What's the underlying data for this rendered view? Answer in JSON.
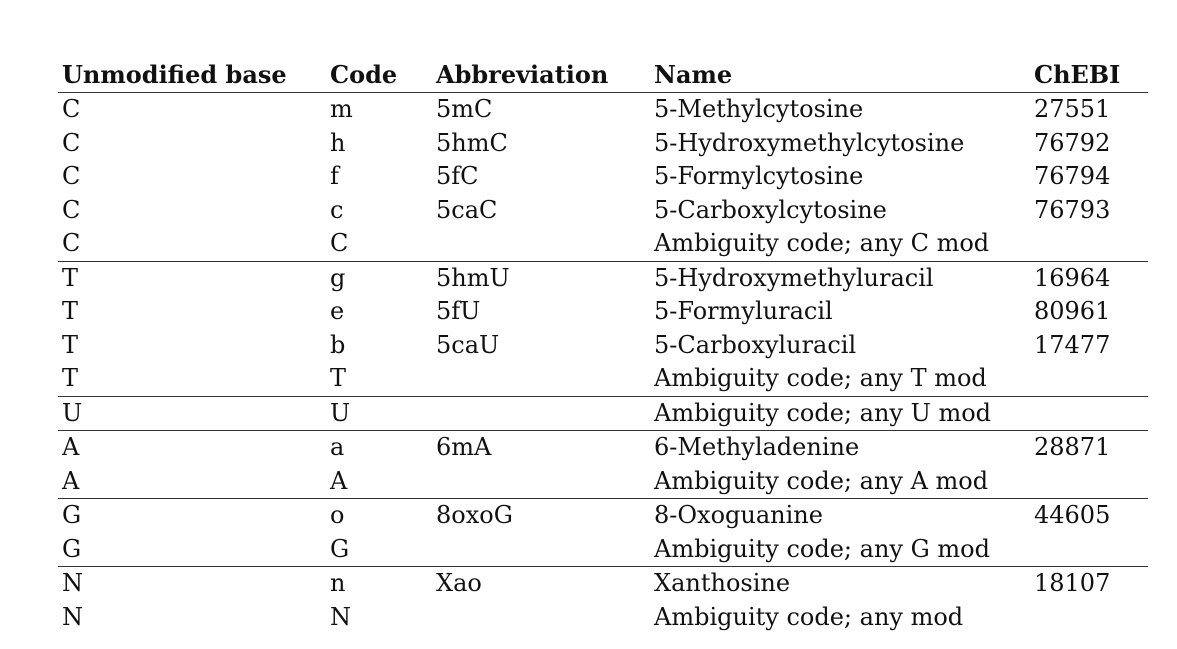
{
  "table": {
    "headers": [
      "Unmodified base",
      "Code",
      "Abbreviation",
      "Name",
      "ChEBI"
    ],
    "rows": [
      [
        "C",
        "m",
        "5mC",
        "5-Methylcytosine",
        "27551"
      ],
      [
        "C",
        "h",
        "5hmC",
        "5-Hydroxymethylcytosine",
        "76792"
      ],
      [
        "C",
        "f",
        "5fC",
        "5-Formylcytosine",
        "76794"
      ],
      [
        "C",
        "c",
        "5caC",
        "5-Carboxylcytosine",
        "76793"
      ],
      [
        "C",
        "C",
        "",
        "Ambiguity code; any C mod",
        ""
      ],
      [
        "T",
        "g",
        "5hmU",
        "5-Hydroxymethyluracil",
        "16964"
      ],
      [
        "T",
        "e",
        "5fU",
        "5-Formyluracil",
        "80961"
      ],
      [
        "T",
        "b",
        "5caU",
        "5-Carboxyluracil",
        "17477"
      ],
      [
        "T",
        "T",
        "",
        "Ambiguity code; any T mod",
        ""
      ],
      [
        "U",
        "U",
        "",
        "Ambiguity code; any U mod",
        ""
      ],
      [
        "A",
        "a",
        "6mA",
        "6-Methyladenine",
        "28871"
      ],
      [
        "A",
        "A",
        "",
        "Ambiguity code; any A mod",
        ""
      ],
      [
        "G",
        "o",
        "8oxoG",
        "8-Oxoguanine",
        "44605"
      ],
      [
        "G",
        "G",
        "",
        "Ambiguity code; any G mod",
        ""
      ],
      [
        "N",
        "n",
        "Xao",
        "Xanthosine",
        "18107"
      ],
      [
        "N",
        "N",
        "",
        "Ambiguity code; any mod",
        ""
      ]
    ]
  }
}
